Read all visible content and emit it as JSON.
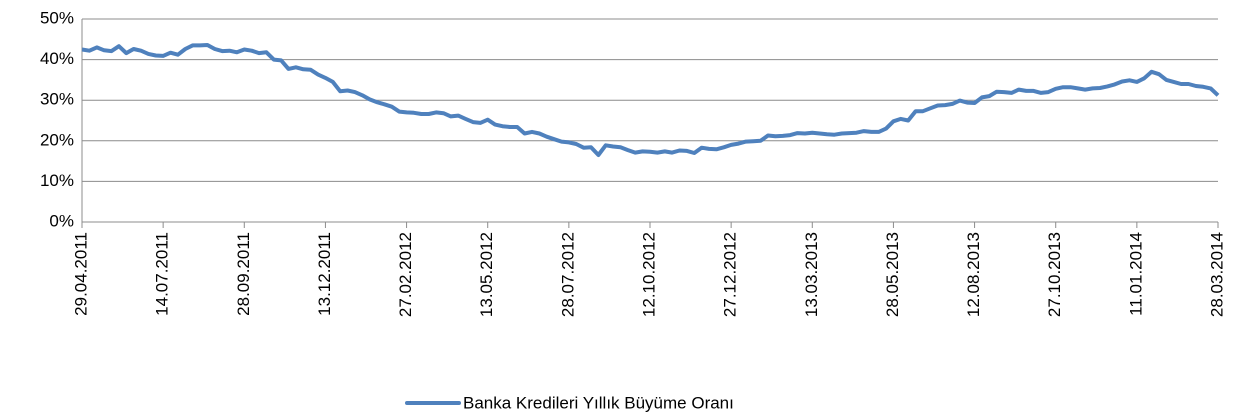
{
  "chart_data": {
    "type": "line",
    "categories": [
      "29.04.2011",
      null,
      null,
      null,
      null,
      null,
      null,
      null,
      null,
      null,
      null,
      "14.07.2011",
      null,
      null,
      null,
      null,
      null,
      null,
      null,
      null,
      null,
      null,
      "28.09.2011",
      null,
      null,
      null,
      null,
      null,
      null,
      null,
      null,
      null,
      null,
      "13.12.2011",
      null,
      null,
      null,
      null,
      null,
      null,
      null,
      null,
      null,
      null,
      "27.02.2012",
      null,
      null,
      null,
      null,
      null,
      null,
      null,
      null,
      null,
      null,
      "13.05.2012",
      null,
      null,
      null,
      null,
      null,
      null,
      null,
      null,
      null,
      null,
      "28.07.2012",
      null,
      null,
      null,
      null,
      null,
      null,
      null,
      null,
      null,
      null,
      "12.10.2012",
      null,
      null,
      null,
      null,
      null,
      null,
      null,
      null,
      null,
      null,
      "27.12.2012",
      null,
      null,
      null,
      null,
      null,
      null,
      null,
      null,
      null,
      null,
      "13.03.2013",
      null,
      null,
      null,
      null,
      null,
      null,
      null,
      null,
      null,
      null,
      "28.05.2013",
      null,
      null,
      null,
      null,
      null,
      null,
      null,
      null,
      null,
      null,
      "12.08.2013",
      null,
      null,
      null,
      null,
      null,
      null,
      null,
      null,
      null,
      null,
      "27.10.2013",
      null,
      null,
      null,
      null,
      null,
      null,
      null,
      null,
      null,
      null,
      "11.01.2014",
      null,
      null,
      null,
      null,
      null,
      null,
      null,
      null,
      null,
      null,
      "28.03.2014"
    ],
    "series": [
      {
        "name": "Banka Kredileri Yıllık Büyüme Oranı",
        "color": "#4f81bd",
        "values": [
          42.5,
          42.2,
          43,
          42.3,
          42.1,
          43.3,
          41.6,
          42.6,
          42.2,
          41.4,
          41,
          40.9,
          41.7,
          41.2,
          42.6,
          43.5,
          43.5,
          43.6,
          42.6,
          42.1,
          42.2,
          41.8,
          42.5,
          42.2,
          41.6,
          41.8,
          40,
          39.8,
          37.7,
          38.1,
          37.6,
          37.5,
          36.3,
          35.5,
          34.5,
          32.2,
          32.4,
          32,
          31.2,
          30.2,
          29.5,
          29,
          28.4,
          27.2,
          27,
          26.9,
          26.6,
          26.6,
          27,
          26.8,
          26,
          26.2,
          25.4,
          24.6,
          24.4,
          25.2,
          24,
          23.6,
          23.4,
          23.4,
          21.8,
          22.2,
          21.8,
          21,
          20.4,
          19.8,
          19.6,
          19.2,
          18.3,
          18.4,
          16.5,
          18.9,
          18.6,
          18.4,
          17.7,
          17.1,
          17.4,
          17.3,
          17.1,
          17.4,
          17.1,
          17.6,
          17.5,
          17,
          18.3,
          18,
          17.9,
          18.4,
          19,
          19.3,
          19.8,
          19.9,
          20,
          21.3,
          21.1,
          21.2,
          21.4,
          21.9,
          21.8,
          22,
          21.8,
          21.6,
          21.5,
          21.8,
          21.9,
          22,
          22.4,
          22.2,
          22.2,
          23,
          24.8,
          25.4,
          25,
          27.3,
          27.3,
          28,
          28.7,
          28.8,
          29.1,
          29.9,
          29.4,
          29.3,
          30.7,
          31,
          32.1,
          32,
          31.8,
          32.6,
          32.3,
          32.3,
          31.8,
          32,
          32.8,
          33.2,
          33.2,
          32.9,
          32.6,
          32.9,
          33,
          33.4,
          33.9,
          34.6,
          34.9,
          34.5,
          35.4,
          37,
          36.4,
          35,
          34.5,
          34,
          34,
          33.5,
          33.3,
          32.9,
          31.2
        ]
      }
    ],
    "ylim": [
      0,
      50
    ],
    "yticks": [
      {
        "value": 0,
        "label": "0%"
      },
      {
        "value": 10,
        "label": "10%"
      },
      {
        "value": 20,
        "label": "20%"
      },
      {
        "value": 30,
        "label": "30%"
      },
      {
        "value": 40,
        "label": "40%"
      },
      {
        "value": 50,
        "label": "50%"
      }
    ],
    "grid": true,
    "legend": "bottom"
  }
}
